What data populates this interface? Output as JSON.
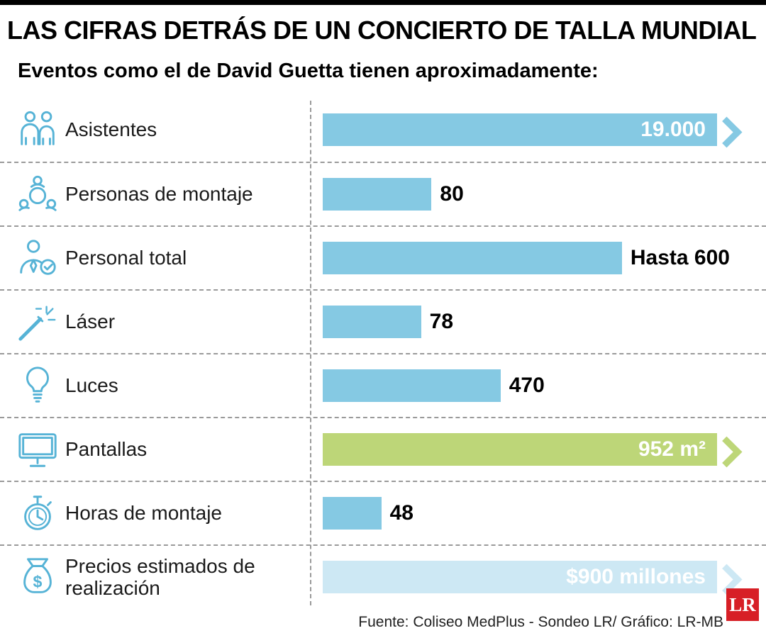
{
  "header": {
    "title": "LAS CIFRAS DETRÁS DE UN CONCIERTO DE TALLA MUNDIAL",
    "subtitle": "Eventos como el de David Guetta tienen aproximadamente:"
  },
  "footer": {
    "source": "Fuente: Coliseo MedPlus - Sondeo LR/ Gráfico: LR-MB",
    "logo_text": "LR"
  },
  "colors": {
    "bar_blue": "#85c9e3",
    "bar_green": "#bdd678",
    "bar_pale_blue": "#cde8f4",
    "icon_stroke": "#56b3d6",
    "logo_red": "#d71f26"
  },
  "chart_data": {
    "type": "bar",
    "orientation": "horizontal",
    "title": "LAS CIFRAS DETRÁS DE UN CONCIERTO DE TALLA MUNDIAL",
    "subtitle": "Eventos como el de David Guetta tienen aproximadamente:",
    "rows": [
      {
        "label": "Asistentes",
        "icon": "attendees-icon",
        "value": 19000,
        "value_text": "19.000",
        "bar_pct": 100,
        "color": "blue",
        "value_position": "inside",
        "arrow": true
      },
      {
        "label": "Personas de montaje",
        "icon": "setup-crew-icon",
        "value": 80,
        "value_text": "80",
        "bar_pct": 26,
        "color": "blue",
        "value_position": "outside",
        "arrow": false
      },
      {
        "label": "Personal total",
        "icon": "total-staff-icon",
        "value": 600,
        "value_text": "Hasta 600",
        "bar_pct": 71.5,
        "color": "blue",
        "value_position": "outside",
        "arrow": false
      },
      {
        "label": "Láser",
        "icon": "laser-icon",
        "value": 78,
        "value_text": "78",
        "bar_pct": 23.5,
        "color": "blue",
        "value_position": "outside",
        "arrow": false
      },
      {
        "label": "Luces",
        "icon": "lights-icon",
        "value": 470,
        "value_text": "470",
        "bar_pct": 42.5,
        "color": "blue",
        "value_position": "outside",
        "arrow": false
      },
      {
        "label": "Pantallas",
        "icon": "screens-icon",
        "value": 952,
        "value_text": "952 m²",
        "bar_pct": 100,
        "color": "green",
        "value_position": "inside",
        "arrow": true
      },
      {
        "label": "Horas de montaje",
        "icon": "hours-icon",
        "value": 48,
        "value_text": "48",
        "bar_pct": 14,
        "color": "blue",
        "value_position": "outside",
        "arrow": false
      },
      {
        "label": "Precios estimados de realización",
        "icon": "price-icon",
        "value": 900,
        "value_text": "$900 millones",
        "bar_pct": 100,
        "color": "pale",
        "value_position": "inside",
        "arrow": true
      }
    ]
  }
}
